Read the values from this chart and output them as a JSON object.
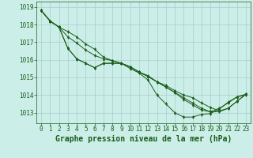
{
  "bg_color": "#cceee8",
  "grid_color": "#aacccc",
  "line_color": "#1a5c1a",
  "marker_color": "#1a5c1a",
  "xlabel": "Graphe pression niveau de la mer (hPa)",
  "xlabel_color": "#1a5c1a",
  "ylim": [
    1012.4,
    1019.3
  ],
  "xlim": [
    -0.5,
    23.5
  ],
  "yticks": [
    1013,
    1014,
    1015,
    1016,
    1017,
    1018,
    1019
  ],
  "xticks": [
    0,
    1,
    2,
    3,
    4,
    5,
    6,
    7,
    8,
    9,
    10,
    11,
    12,
    13,
    14,
    15,
    16,
    17,
    18,
    19,
    20,
    21,
    22,
    23
  ],
  "lines": [
    [
      1018.8,
      1018.2,
      1017.85,
      1016.65,
      1016.05,
      1015.8,
      1015.55,
      1015.8,
      1015.8,
      1015.8,
      1015.5,
      1015.25,
      1014.85,
      1014.0,
      1013.5,
      1013.0,
      1012.75,
      1012.75,
      1012.9,
      1012.95,
      1013.2,
      1013.6,
      1013.9,
      1014.0
    ],
    [
      1018.8,
      1018.2,
      1017.85,
      1017.6,
      1017.3,
      1016.9,
      1016.6,
      1016.15,
      1015.95,
      1015.8,
      1015.6,
      1015.3,
      1015.1,
      1014.75,
      1014.55,
      1014.25,
      1014.0,
      1013.85,
      1013.55,
      1013.3,
      1013.1,
      1013.25,
      1013.65,
      1014.05
    ],
    [
      1018.8,
      1018.2,
      1017.85,
      1017.3,
      1016.95,
      1016.55,
      1016.25,
      1016.05,
      1015.95,
      1015.8,
      1015.6,
      1015.3,
      1015.05,
      1014.75,
      1014.45,
      1014.15,
      1013.85,
      1013.55,
      1013.25,
      1013.05,
      1013.05,
      1013.25,
      1013.65,
      1014.05
    ],
    [
      1018.8,
      1018.2,
      1017.85,
      1016.65,
      1016.05,
      1015.8,
      1015.55,
      1015.8,
      1015.8,
      1015.8,
      1015.6,
      1015.3,
      1015.05,
      1014.75,
      1014.45,
      1014.15,
      1013.75,
      1013.45,
      1013.15,
      1013.05,
      1013.25,
      1013.55,
      1013.9,
      1014.05
    ]
  ],
  "tick_fontsize": 5.5,
  "xlabel_fontsize": 7.0
}
